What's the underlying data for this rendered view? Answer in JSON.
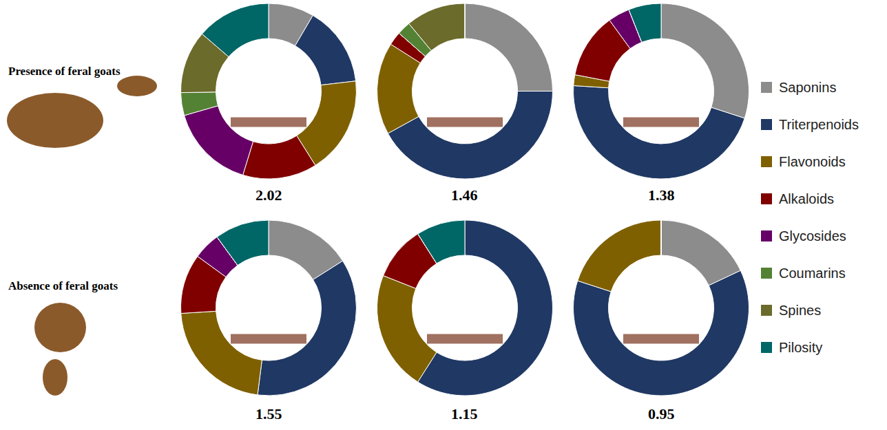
{
  "chart_data": [
    {
      "type": "pie",
      "categories": [
        "Saponins",
        "Triterpenoids",
        "Flavonoids",
        "Alkaloids",
        "Glycosides",
        "Coumarins",
        "Spines",
        "Pilosity"
      ],
      "values": [
        8,
        14,
        17,
        13,
        15,
        4,
        11,
        13
      ],
      "colors": [
        "#8c8c8c",
        "#203864",
        "#7f6000",
        "#800000",
        "#660066",
        "#548235",
        "#6b6b2b",
        "#006666"
      ],
      "annotation": "2.02"
    },
    {
      "type": "pie",
      "categories": [
        "Saponins",
        "Triterpenoids",
        "Flavonoids",
        "Alkaloids",
        "Glycosides",
        "Coumarins",
        "Spines",
        "Pilosity"
      ],
      "values": [
        25,
        42,
        17,
        2.5,
        0,
        2.5,
        11,
        0
      ],
      "colors": [
        "#8c8c8c",
        "#203864",
        "#7f6000",
        "#800000",
        "#660066",
        "#548235",
        "#6b6b2b",
        "#006666"
      ],
      "annotation": "1.46"
    },
    {
      "type": "pie",
      "categories": [
        "Saponins",
        "Triterpenoids",
        "Flavonoids",
        "Alkaloids",
        "Glycosides",
        "Coumarins",
        "Spines",
        "Pilosity"
      ],
      "values": [
        30,
        46,
        2,
        12,
        4,
        0,
        0,
        6
      ],
      "colors": [
        "#8c8c8c",
        "#203864",
        "#7f6000",
        "#800000",
        "#660066",
        "#548235",
        "#6b6b2b",
        "#006666"
      ],
      "annotation": "1.38"
    },
    {
      "type": "pie",
      "categories": [
        "Saponins",
        "Triterpenoids",
        "Flavonoids",
        "Alkaloids",
        "Glycosides",
        "Coumarins",
        "Spines",
        "Pilosity"
      ],
      "values": [
        16,
        36,
        22,
        11,
        5,
        0,
        0,
        10
      ],
      "colors": [
        "#8c8c8c",
        "#203864",
        "#7f6000",
        "#800000",
        "#660066",
        "#548235",
        "#6b6b2b",
        "#006666"
      ],
      "annotation": "1.55"
    },
    {
      "type": "pie",
      "categories": [
        "Saponins",
        "Triterpenoids",
        "Flavonoids",
        "Alkaloids",
        "Glycosides",
        "Coumarins",
        "Spines",
        "Pilosity"
      ],
      "values": [
        0,
        59,
        22,
        10,
        0,
        0,
        0,
        9
      ],
      "colors": [
        "#8c8c8c",
        "#203864",
        "#7f6000",
        "#800000",
        "#660066",
        "#548235",
        "#6b6b2b",
        "#006666"
      ],
      "annotation": "1.15"
    },
    {
      "type": "pie",
      "categories": [
        "Saponins",
        "Triterpenoids",
        "Flavonoids",
        "Alkaloids",
        "Glycosides",
        "Coumarins",
        "Spines",
        "Pilosity"
      ],
      "values": [
        18,
        62,
        20,
        0,
        0,
        0,
        0,
        0
      ],
      "colors": [
        "#8c8c8c",
        "#203864",
        "#7f6000",
        "#800000",
        "#660066",
        "#548235",
        "#6b6b2b",
        "#006666"
      ],
      "annotation": "0.95"
    }
  ],
  "row_labels": [
    "Presence of feral goats",
    "Absence of feral goats"
  ],
  "legend": "right"
}
